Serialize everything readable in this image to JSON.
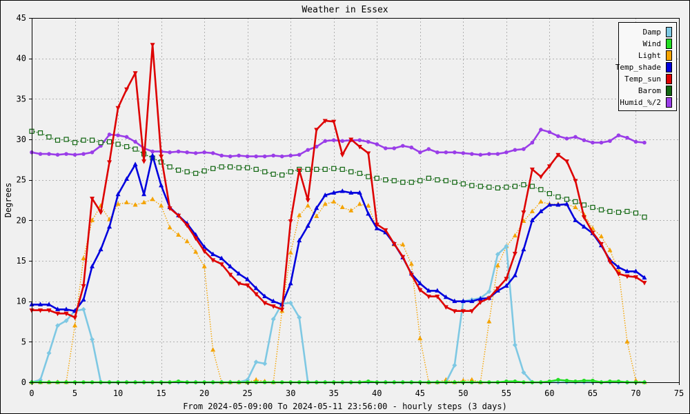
{
  "chart_data": {
    "type": "line",
    "title": "Weather in Essex",
    "xlabel": "From 2024-05-09:00 To 2024-05-11 23:56:00 - hourly steps (3 days)",
    "ylabel": "Degrees",
    "xlim": [
      0,
      75
    ],
    "ylim": [
      0,
      45
    ],
    "xticks": [
      0,
      5,
      10,
      15,
      20,
      25,
      30,
      35,
      40,
      45,
      50,
      55,
      60,
      65,
      70,
      75
    ],
    "yticks": [
      0,
      5,
      10,
      15,
      20,
      25,
      30,
      35,
      40,
      45
    ],
    "grid": true,
    "legend_position": "top-right",
    "series": [
      {
        "name": "Damp",
        "color": "#7ec8e3",
        "marker": "diamond",
        "dashed": false,
        "values": [
          0,
          0.3,
          3.6,
          7,
          7.6,
          8.8,
          9,
          5.3,
          0,
          0,
          0,
          0,
          0,
          0,
          0,
          0,
          0,
          0,
          0,
          0,
          0,
          0,
          0,
          0,
          0,
          0.3,
          2.5,
          2.3,
          7.8,
          9.7,
          9.8,
          8,
          0,
          0,
          0,
          0,
          0,
          0,
          0,
          0,
          0,
          0,
          0,
          0,
          0,
          0,
          0,
          0,
          0,
          2.1,
          10,
          10.2,
          10.4,
          11.2,
          15.8,
          16.8,
          4.6,
          1.2,
          0,
          0,
          0,
          0,
          0,
          0,
          0,
          0,
          0,
          0,
          0,
          0,
          0,
          0
        ]
      },
      {
        "name": "Wind",
        "color": "#22dd22",
        "marker": "circle",
        "dashed": false,
        "values": [
          0,
          0,
          0,
          0,
          0,
          0,
          0,
          0,
          0,
          0,
          0,
          0,
          0,
          0,
          0,
          0,
          0,
          0.1,
          0,
          0,
          0,
          0,
          0,
          0,
          0,
          0,
          0,
          0,
          0,
          0,
          0,
          0,
          0,
          0,
          0,
          0,
          0,
          0,
          0,
          0.1,
          0,
          0,
          0,
          0,
          0,
          0,
          0,
          0,
          0,
          0,
          0,
          0,
          0,
          0,
          0,
          0.1,
          0.1,
          0,
          0,
          0,
          0.1,
          0.3,
          0.2,
          0.1,
          0.2,
          0.2,
          0,
          0.1,
          0.1,
          0,
          0,
          0
        ]
      },
      {
        "name": "Light",
        "color": "#f4a300",
        "marker": "triangle",
        "dashed": true,
        "values": [
          0,
          0,
          0,
          0,
          0,
          7,
          15.3,
          20,
          21.8,
          20.1,
          22,
          22.2,
          21.9,
          22.2,
          22.6,
          21.8,
          19.1,
          18.2,
          17.4,
          16.1,
          14.3,
          4,
          0,
          0,
          0,
          0,
          0.3,
          0.1,
          0,
          8.8,
          16,
          20.6,
          21.8,
          20.5,
          22,
          22.3,
          21.6,
          21.2,
          22,
          21.8,
          19,
          18.5,
          17,
          17,
          14.6,
          5.4,
          0,
          0,
          0.3,
          0,
          0.2,
          0.3,
          0,
          7.5,
          14.4,
          16.8,
          18.1,
          19.9,
          21.1,
          22.3,
          22,
          22,
          22,
          21.6,
          20.7,
          19,
          18,
          16.3,
          13.8,
          5,
          0.2,
          0
        ]
      },
      {
        "name": "Temp_shade",
        "color": "#0000dd",
        "marker": "triangle",
        "dashed": false,
        "values": [
          9.6,
          9.6,
          9.6,
          9,
          9,
          8.8,
          10.2,
          14.3,
          16.4,
          19.2,
          23.2,
          25.1,
          26.9,
          23.2,
          28,
          24.3,
          21.6,
          20.6,
          19.6,
          18.2,
          16.7,
          15.8,
          15.3,
          14.3,
          13.4,
          12.7,
          11.6,
          10.6,
          10,
          9.6,
          12.2,
          17.5,
          19.3,
          21.5,
          23.1,
          23.4,
          23.6,
          23.4,
          23.4,
          20.8,
          19,
          18.5,
          17.1,
          15.4,
          13.4,
          12.2,
          11.3,
          11.3,
          10.5,
          10,
          10,
          10,
          10.3,
          10.4,
          11.3,
          11.9,
          13.2,
          16.4,
          20,
          21.1,
          21.9,
          21.9,
          22,
          20,
          19.2,
          18.4,
          16.9,
          15.1,
          14.2,
          13.7,
          13.7,
          12.9
        ]
      },
      {
        "name": "Temp_sun",
        "color": "#dd0000",
        "marker": "triangle-down",
        "dashed": false,
        "values": [
          8.9,
          8.9,
          8.9,
          8.5,
          8.5,
          8,
          11.9,
          22.7,
          21,
          27.2,
          33.9,
          36.2,
          38.2,
          27.3,
          41.7,
          27.9,
          21.5,
          20.6,
          19.4,
          17.8,
          16.2,
          15.1,
          14.6,
          13.3,
          12.2,
          12,
          10.9,
          9.8,
          9.4,
          9,
          19.9,
          26.2,
          22.5,
          31.2,
          32.3,
          32.2,
          28.1,
          30,
          29.1,
          28.3,
          19.5,
          18.8,
          17.1,
          15.5,
          13.3,
          11.4,
          10.6,
          10.6,
          9.3,
          8.8,
          8.8,
          8.8,
          9.9,
          10.4,
          11.6,
          12.8,
          15.9,
          21,
          26.3,
          25.4,
          26.7,
          28.1,
          27.3,
          24.9,
          20.4,
          18.5,
          17.1,
          14.9,
          13.4,
          13.1,
          13,
          12.3
        ]
      },
      {
        "name": "Barom",
        "color": "#116611",
        "marker": "square",
        "dashed": true,
        "values": [
          31,
          30.8,
          30.3,
          29.9,
          30,
          29.6,
          29.9,
          29.9,
          29.6,
          29.7,
          29.4,
          29.1,
          28.8,
          28.2,
          27.7,
          27.2,
          26.6,
          26.2,
          26,
          25.8,
          26.1,
          26.4,
          26.6,
          26.6,
          26.5,
          26.5,
          26.3,
          26,
          25.7,
          25.6,
          26,
          26.3,
          26.3,
          26.3,
          26.3,
          26.4,
          26.3,
          26,
          25.8,
          25.4,
          25.2,
          25,
          24.9,
          24.7,
          24.7,
          24.9,
          25.2,
          25,
          24.9,
          24.7,
          24.5,
          24.3,
          24.2,
          24.1,
          24,
          24.1,
          24.2,
          24.4,
          24.2,
          23.8,
          23.3,
          22.9,
          22.6,
          22.3,
          21.9,
          21.6,
          21.3,
          21.1,
          21,
          21.1,
          20.9,
          20.4
        ]
      },
      {
        "name": "Humid_%/2",
        "color": "#9a3de8",
        "marker": "circle",
        "dashed": false,
        "values": [
          28.4,
          28.2,
          28.2,
          28.1,
          28.2,
          28.1,
          28.2,
          28.4,
          29.2,
          30.6,
          30.5,
          30.3,
          29.7,
          28.9,
          28.5,
          28.5,
          28.4,
          28.5,
          28.4,
          28.3,
          28.4,
          28.3,
          28,
          27.9,
          28,
          27.9,
          27.9,
          27.9,
          28,
          27.9,
          28,
          28.1,
          28.7,
          29.1,
          29.8,
          29.9,
          29.8,
          29.9,
          29.9,
          29.7,
          29.4,
          28.9,
          28.9,
          29.2,
          29,
          28.4,
          28.8,
          28.4,
          28.4,
          28.4,
          28.3,
          28.2,
          28.1,
          28.2,
          28.2,
          28.4,
          28.7,
          28.8,
          29.6,
          31.2,
          30.9,
          30.4,
          30.1,
          30.3,
          29.9,
          29.6,
          29.6,
          29.8,
          30.5,
          30.2,
          29.7,
          29.6
        ]
      }
    ]
  }
}
